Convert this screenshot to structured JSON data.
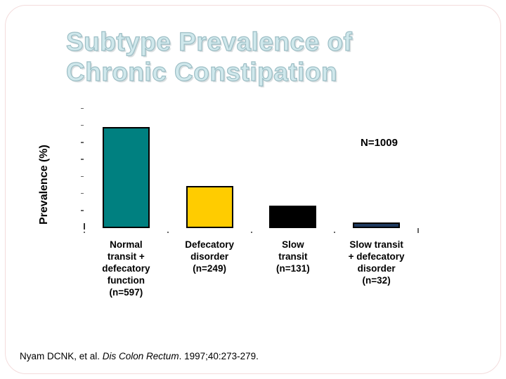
{
  "slide": {
    "title": {
      "line1": "Subtype Prevalence of",
      "line2": "Chronic Constipation"
    },
    "annotation": "N=1009",
    "y_axis_label": "Prevalence (%)",
    "citation": {
      "authors": "Nyam DCNK, et al. ",
      "journal": "Dis Colon Rectum",
      "rest": ". 1997;40:273-279."
    },
    "accent_colors": {
      "title_fill": "#d0e8ec",
      "title_outline": "#9cbec5",
      "frame_border": "#f3dcdc"
    }
  },
  "chart_data": {
    "type": "bar",
    "title": "Subtype Prevalence of Chronic Constipation",
    "xlabel": "",
    "ylabel": "Prevalence (%)",
    "ylim": [
      0,
      70
    ],
    "ytick_step": 10,
    "grid": false,
    "legend": "none",
    "annotation": "N=1009",
    "total_n": 1009,
    "categories": [
      "Normal transit + defecatory function (n=597)",
      "Defecatory disorder (n=249)",
      "Slow transit (n=131)",
      "Slow transit + defecatory disorder (n=32)"
    ],
    "categories_display": [
      "Normal\ntransit +\ndefecatory\nfunction\n(n=597)",
      "Defecatory\ndisorder\n(n=249)",
      "Slow\ntransit\n(n=131)",
      "Slow transit\n+ defecatory\ndisorder\n(n=32)"
    ],
    "values": [
      59.2,
      24.7,
      13.0,
      3.2
    ],
    "sample_sizes": [
      597,
      249,
      131,
      32
    ],
    "bar_colors": [
      "#008080",
      "#FFCC00",
      "#000000",
      "#1F3A5F"
    ]
  }
}
